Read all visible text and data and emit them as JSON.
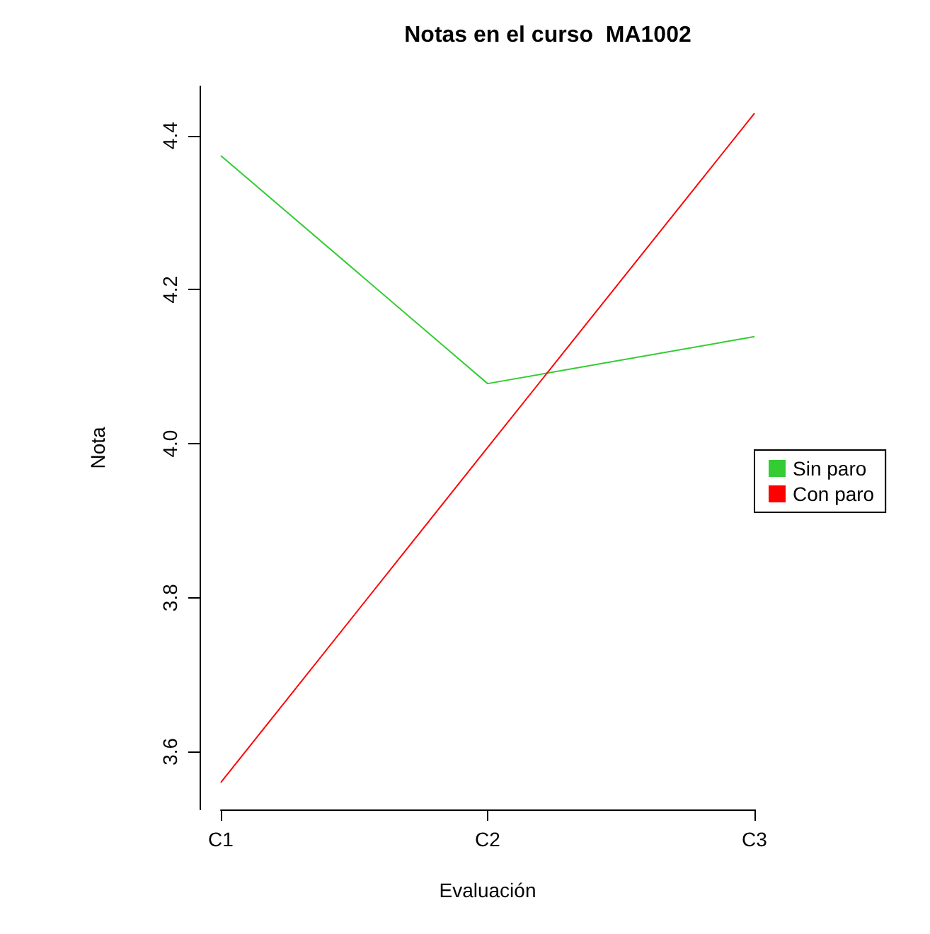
{
  "chart_data": {
    "type": "line",
    "title": "Notas en el curso  MA1002",
    "xlabel": "Evaluación",
    "ylabel": "Nota",
    "categories": [
      "C1",
      "C2",
      "C3"
    ],
    "series": [
      {
        "name": "Sin paro",
        "color": "#33cc33",
        "values": [
          4.374,
          4.078,
          4.139
        ]
      },
      {
        "name": "Con paro",
        "color": "#ff0000",
        "values": [
          3.56,
          3.995,
          4.429
        ]
      }
    ],
    "ylim": [
      3.525,
      4.464
    ],
    "yticks": [
      3.6,
      3.8,
      {
        "value": 4,
        "label": "4.0"
      },
      4.2,
      4.4
    ],
    "grid": false,
    "legend": "right",
    "marker": "none",
    "line_style": "solid"
  }
}
